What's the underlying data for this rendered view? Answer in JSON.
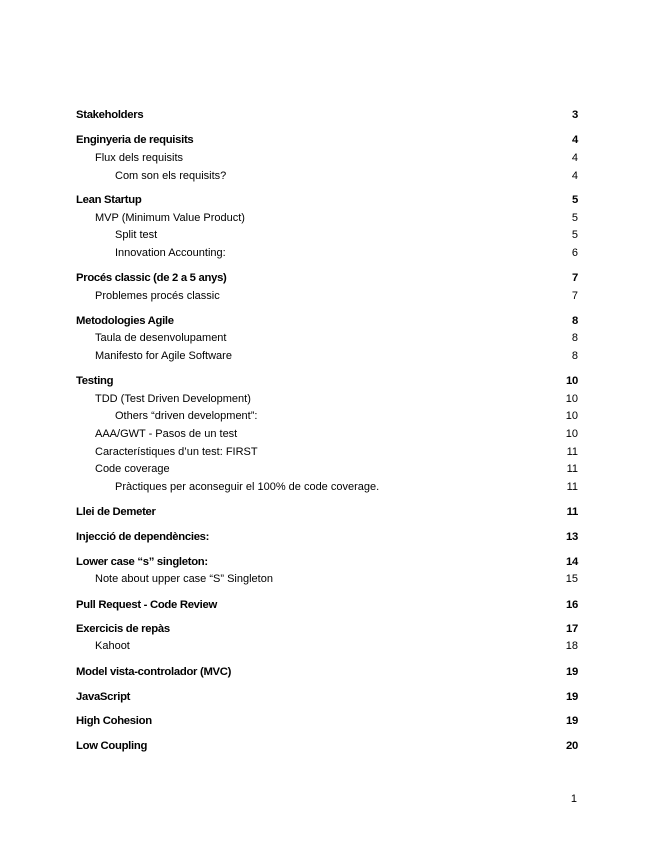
{
  "toc": [
    {
      "title": "Stakeholders",
      "page": "3",
      "level": 1
    },
    {
      "title": "Enginyeria de requisits",
      "page": "4",
      "level": 1
    },
    {
      "title": "Flux  dels requisits",
      "page": "4",
      "level": 2
    },
    {
      "title": "Com son els requisits?",
      "page": "4",
      "level": 3
    },
    {
      "title": "Lean Startup",
      "page": "5",
      "level": 1
    },
    {
      "title": "MVP (Minimum Value Product)",
      "page": "5",
      "level": 2
    },
    {
      "title": "Split test",
      "page": "5",
      "level": 3
    },
    {
      "title": "Innovation Accounting:",
      "page": "6",
      "level": 3
    },
    {
      "title": "Procés classic (de 2 a 5 anys)",
      "page": "7",
      "level": 1
    },
    {
      "title": "Problemes procés classic",
      "page": "7",
      "level": 2
    },
    {
      "title": "Metodologies Agile",
      "page": "8",
      "level": 1
    },
    {
      "title": "Taula de desenvolupament",
      "page": "8",
      "level": 2
    },
    {
      "title": "Manifesto for Agile Software",
      "page": "8",
      "level": 2
    },
    {
      "title": "Testing",
      "page": "10",
      "level": 1
    },
    {
      "title": "TDD (Test Driven Development)",
      "page": "10",
      "level": 2
    },
    {
      "title": "Others “driven development”:",
      "page": "10",
      "level": 3
    },
    {
      "title": "AAA/GWT - Pasos de un test",
      "page": "10",
      "level": 2
    },
    {
      "title": "Característiques d’un test: FIRST",
      "page": "11",
      "level": 2
    },
    {
      "title": "Code coverage",
      "page": "11",
      "level": 2
    },
    {
      "title": "Pràctiques per aconseguir el 100% de code coverage.",
      "page": "11",
      "level": 3
    },
    {
      "title": "Llei de Demeter",
      "page": "11",
      "level": 1
    },
    {
      "title": "Injecció de dependències:",
      "page": "13",
      "level": 1
    },
    {
      "title": "Lower case “s” singleton:",
      "page": "14",
      "level": 1
    },
    {
      "title": "Note about upper case “S” Singleton",
      "page": "15",
      "level": 2
    },
    {
      "title": "Pull Request - Code Review",
      "page": "16",
      "level": 1
    },
    {
      "title": "Exercicis de repàs",
      "page": "17",
      "level": 1
    },
    {
      "title": "Kahoot",
      "page": "18",
      "level": 2
    },
    {
      "title": "Model vista-controlador (MVC)",
      "page": "19",
      "level": 1
    },
    {
      "title": "JavaScript",
      "page": "19",
      "level": 1
    },
    {
      "title": "High Cohesion",
      "page": "19",
      "level": 1
    },
    {
      "title": "Low Coupling",
      "page": "20",
      "level": 1
    }
  ],
  "footer": {
    "page_number": "1"
  }
}
